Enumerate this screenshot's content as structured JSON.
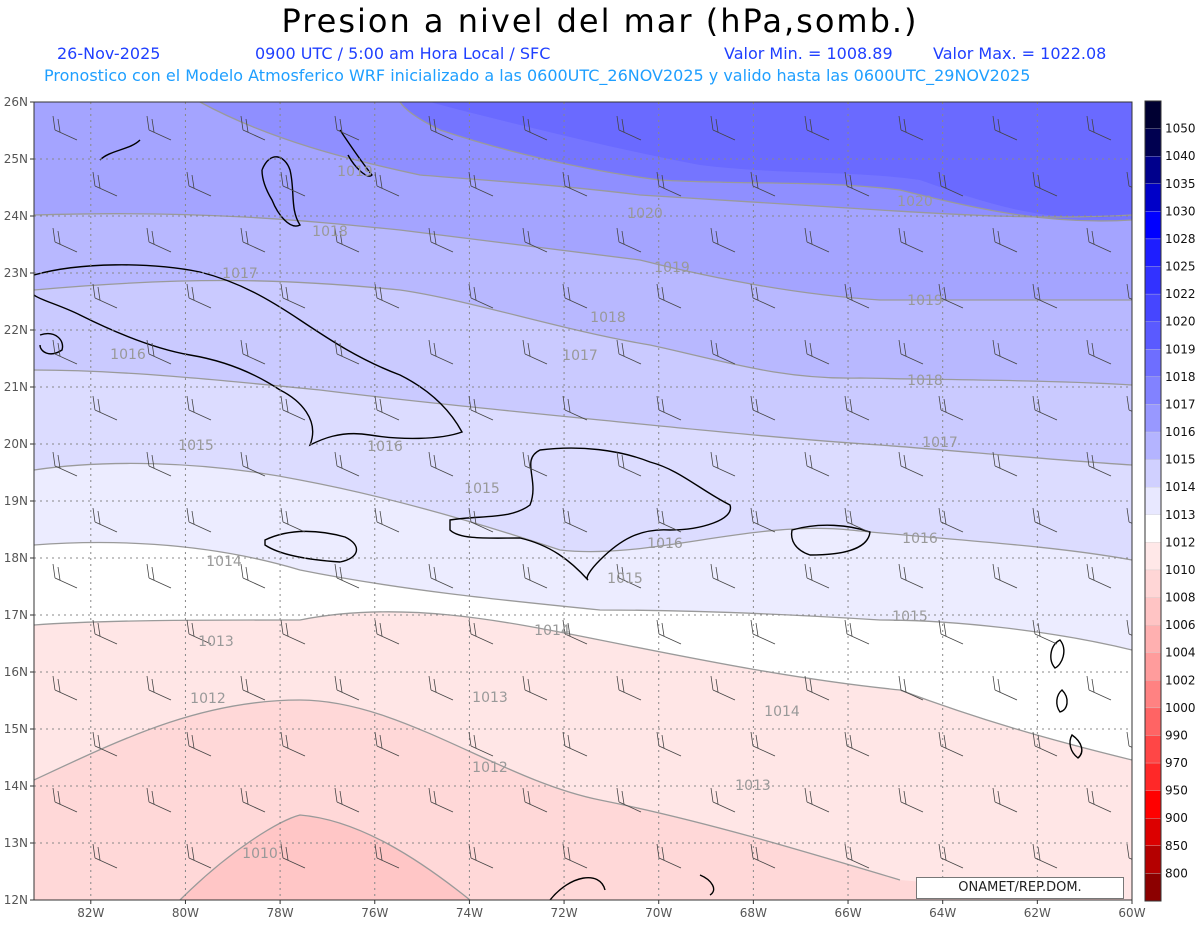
{
  "header": {
    "title": "Presion a nivel del mar (hPa,somb.)",
    "date": "26-Nov-2025",
    "time": "0900 UTC / 5:00 am Hora Local / SFC",
    "min_label": "Valor Min. = 1008.89",
    "max_label": "Valor Max. = 1022.08",
    "model_line": "Pronostico con el Modelo Atmosferico WRF inicializado a las 0600UTC_26NOV2025 y valido hasta las  0600UTC_29NOV2025"
  },
  "map": {
    "lat_labels": [
      "12N",
      "13N",
      "14N",
      "15N",
      "16N",
      "17N",
      "18N",
      "19N",
      "20N",
      "21N",
      "22N",
      "23N",
      "24N",
      "25N",
      "26N"
    ],
    "lon_labels": [
      "82W",
      "80W",
      "78W",
      "76W",
      "74W",
      "72W",
      "70W",
      "68W",
      "66W",
      "64W",
      "62W",
      "60W"
    ],
    "lat_range": [
      12,
      26
    ],
    "lon_range": [
      -83.2,
      -60
    ],
    "grid": "dotted"
  },
  "colorbar": {
    "levels": [
      "1050",
      "1040",
      "1035",
      "1030",
      "1028",
      "1025",
      "1022",
      "1020",
      "1019",
      "1018",
      "1017",
      "1016",
      "1015",
      "1014",
      "1013",
      "1012",
      "1010",
      "1008",
      "1006",
      "1004",
      "1002",
      "1000",
      "990",
      "970",
      "950",
      "900",
      "850",
      "800"
    ],
    "colors": [
      "#000050",
      "#00008c",
      "#0000c8",
      "#0000ff",
      "#1e1eff",
      "#3232ff",
      "#4646ff",
      "#5a5aff",
      "#6e6eff",
      "#8282ff",
      "#9898ff",
      "#b4b4ff",
      "#d0d0ff",
      "#e8e8ff",
      "#ffffff",
      "#ffe8e8",
      "#ffd6d6",
      "#ffc4c4",
      "#ffb0b0",
      "#ff9c9c",
      "#ff8282",
      "#ff6464",
      "#ff4646",
      "#ff2828",
      "#ff0000",
      "#dc0000",
      "#b40000",
      "#8c0000"
    ],
    "top_color": "#000032"
  },
  "contours": [
    {
      "value": "1020",
      "label": "1020"
    },
    {
      "value": "1019",
      "label": "1019"
    },
    {
      "value": "1018",
      "label": "1018"
    },
    {
      "value": "1017",
      "label": "1017"
    },
    {
      "value": "1016",
      "label": "1016"
    },
    {
      "value": "1015",
      "label": "1015"
    },
    {
      "value": "1014",
      "label": "1014"
    },
    {
      "value": "1013",
      "label": "1013"
    },
    {
      "value": "1012",
      "label": "1012"
    },
    {
      "value": "1010",
      "label": "1010"
    }
  ],
  "credit": "ONAMET/REP.DOM."
}
